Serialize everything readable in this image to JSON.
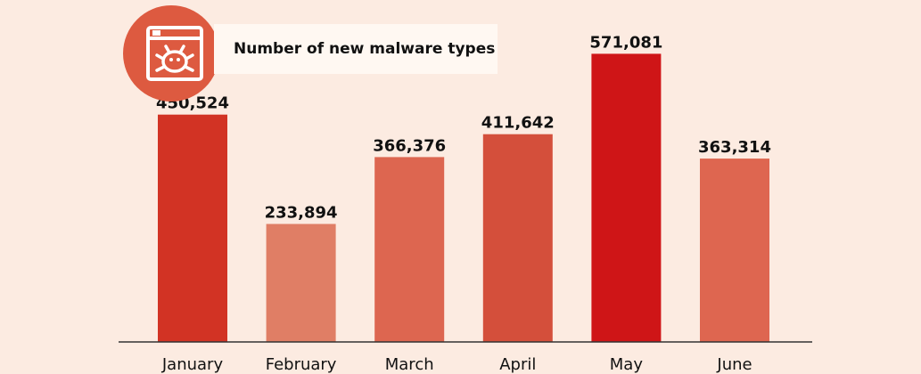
{
  "chart_data": {
    "type": "bar",
    "title": "Number of new malware types",
    "categories": [
      "January",
      "February",
      "March",
      "April",
      "May",
      "June"
    ],
    "values": [
      450524,
      233894,
      366376,
      411642,
      571081,
      363314
    ],
    "value_labels": [
      "450,524",
      "233,894",
      "366,376",
      "411,642",
      "571,081",
      "363,314"
    ],
    "colors": [
      "#d23324",
      "#e07e65",
      "#dd6650",
      "#d44f3b",
      "#cf1517",
      "#de6650"
    ],
    "ylim": [
      0,
      600000
    ],
    "grid": false
  },
  "icon": {
    "name": "malware-bug-icon",
    "color": "#dd5a40"
  }
}
